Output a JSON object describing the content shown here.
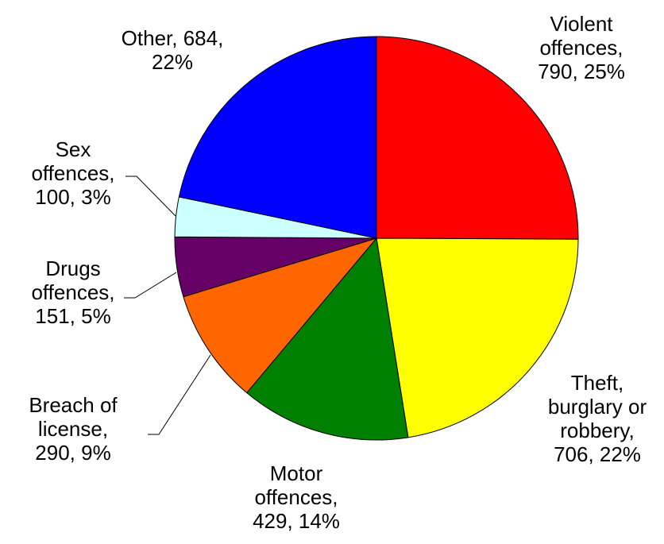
{
  "chart_data": {
    "type": "pie",
    "title": "",
    "slices": [
      {
        "name": "Violent offences",
        "value": 790,
        "percent": "25%",
        "color": "#ff0000",
        "label_lines": [
          "Violent",
          "offences,",
          "790, 25%"
        ]
      },
      {
        "name": "Theft, burglary or robbery",
        "value": 706,
        "percent": "22%",
        "color": "#ffff00",
        "label_lines": [
          "Theft,",
          "burglary or",
          "robbery,",
          "706, 22%"
        ]
      },
      {
        "name": "Motor offences",
        "value": 429,
        "percent": "14%",
        "color": "#008000",
        "label_lines": [
          "Motor",
          "offences,",
          "429, 14%"
        ]
      },
      {
        "name": "Breach of license",
        "value": 290,
        "percent": "9%",
        "color": "#ff6600",
        "label_lines": [
          "Breach of",
          "license,",
          "290, 9%"
        ]
      },
      {
        "name": "Drugs offences",
        "value": 151,
        "percent": "5%",
        "color": "#660066",
        "label_lines": [
          "Drugs",
          "offences,",
          "151, 5%"
        ]
      },
      {
        "name": "Sex offences",
        "value": 100,
        "percent": "3%",
        "color": "#ccffff",
        "label_lines": [
          "Sex",
          "offences,",
          "100, 3%"
        ]
      },
      {
        "name": "Other",
        "value": 684,
        "percent": "22%",
        "color": "#0000ff",
        "label_lines": [
          "Other, 684,",
          "22%"
        ]
      }
    ],
    "start_angle": "12 o'clock",
    "direction": "clockwise",
    "legend": "none"
  }
}
